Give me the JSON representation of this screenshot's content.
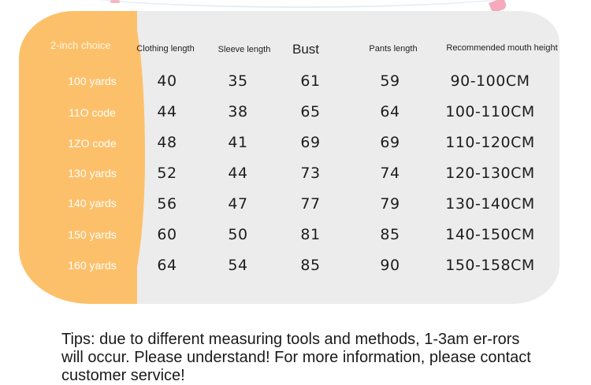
{
  "table": {
    "choice_label": "2-inch choice",
    "headers": [
      "Clothing length",
      "Sleeve length",
      "Bust",
      "Pants length",
      "Recommended mouth height"
    ],
    "rows": [
      {
        "label": "100 yards",
        "values": [
          "40",
          "35",
          "61",
          "59",
          "90-100CM"
        ]
      },
      {
        "label": "11O code",
        "values": [
          "44",
          "38",
          "65",
          "64",
          "100-110CM"
        ]
      },
      {
        "label": "1ZO code",
        "values": [
          "48",
          "41",
          "69",
          "69",
          "110-120CM"
        ]
      },
      {
        "label": "130 yards",
        "values": [
          "52",
          "44",
          "73",
          "74",
          "120-130CM"
        ]
      },
      {
        "label": "140 yards",
        "values": [
          "56",
          "47",
          "77",
          "79",
          "130-140CM"
        ]
      },
      {
        "label": "150 yards",
        "values": [
          "60",
          "50",
          "81",
          "85",
          "140-150CM"
        ]
      },
      {
        "label": "160 yards",
        "values": [
          "64",
          "54",
          "85",
          "90",
          "150-158CM"
        ]
      }
    ]
  },
  "tips": "Tips: due to different measuring tools and methods, 1-3am er-rors will occur. Please understand! For more information, please contact customer service!",
  "colors": {
    "accent": "#fdc06a",
    "card": "#ececec"
  }
}
